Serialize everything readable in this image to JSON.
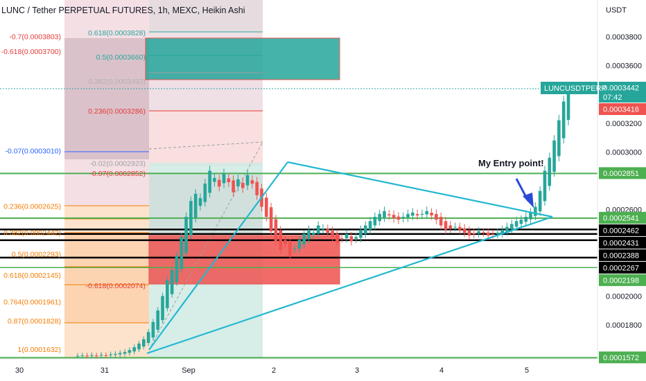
{
  "chart_data": {
    "type": "candlestick",
    "title": "LUNC / Tether PERPETUAL FUTURES, 1h, MEXC, Heikin Ashi",
    "symbol": "LUNCUSDTPERP",
    "currency": "USDT",
    "candle_style": "Heikin Ashi",
    "colors": {
      "up": "#26a69a",
      "down": "#ef5350",
      "trendline": "#22b8cf",
      "support": "#4caf50",
      "level": "#000000",
      "fib_blue": "#2962ff",
      "fib_red": "#e53935",
      "fib_orange": "#f57c00"
    },
    "y_axis": {
      "ticks": [
        "0.0003800",
        "0.0003600",
        "0.0003200",
        "0.0003000",
        "0.0002600",
        "0.0002000",
        "0.0001800"
      ],
      "ylim": [
        0.000153,
        0.0004
      ]
    },
    "x_axis": {
      "ticks": [
        "30",
        "31",
        "Sep",
        "2",
        "3",
        "4",
        "5"
      ]
    },
    "price_tags": [
      {
        "value": "0.0003442",
        "sub": "07:42",
        "color": "#26a69a"
      },
      {
        "value": "0.0003416",
        "color": "#ef5350"
      },
      {
        "value": "0.0002851",
        "color": "#4caf50"
      },
      {
        "value": "0.0002541",
        "color": "#4caf50"
      },
      {
        "value": "0.0002462",
        "color": "#000000"
      },
      {
        "value": "0.0002431",
        "color": "#000000"
      },
      {
        "value": "0.0002388",
        "color": "#000000"
      },
      {
        "value": "0.0002267",
        "color": "#000000"
      },
      {
        "value": "0.0002198",
        "color": "#4caf50"
      },
      {
        "value": "0.0001572",
        "color": "#4caf50"
      }
    ],
    "horizontal_levels": [
      {
        "price": 0.0002851,
        "color": "#4caf50",
        "width": 2
      },
      {
        "price": 0.0002541,
        "color": "#4caf50",
        "width": 2
      },
      {
        "price": 0.0002462,
        "color": "#000000",
        "width": 2.5
      },
      {
        "price": 0.0002431,
        "color": "#000000",
        "width": 2.5
      },
      {
        "price": 0.0002388,
        "color": "#000000",
        "width": 2.5
      },
      {
        "price": 0.0002267,
        "color": "#000000",
        "width": 2.5
      },
      {
        "price": 0.0002198,
        "color": "#4caf50",
        "width": 1.5
      },
      {
        "price": 0.0001572,
        "color": "#4caf50",
        "width": 2
      }
    ],
    "fib_labels": [
      {
        "text": "-0.7(0.0003803)",
        "price": 0.0003803,
        "color": "#e53935"
      },
      {
        "text": "-0.618(0.0003700)",
        "price": 0.00037,
        "color": "#e53935"
      },
      {
        "text": "0.618(0.0003828)",
        "price": 0.0003828,
        "color": "#26a69a"
      },
      {
        "text": "0.5(0.0003660)",
        "price": 0.000366,
        "color": "#26a69a"
      },
      {
        "text": "0.382(0.0003493)",
        "price": 0.0003493,
        "color": "#b0b0b0"
      },
      {
        "text": "0.236(0.0003286)",
        "price": 0.0003286,
        "color": "#e53935"
      },
      {
        "text": "-0.07(0.0003010)",
        "price": 0.000301,
        "color": "#2962ff"
      },
      {
        "text": "-0.02(0.0002923)",
        "price": 0.0002923,
        "color": "#9e9e9e"
      },
      {
        "text": "-0.07(0.0002852)",
        "price": 0.0002852,
        "color": "#e53935"
      },
      {
        "text": "0.236(0.0002625)",
        "price": 0.0002625,
        "color": "#f57c00"
      },
      {
        "text": "0.382(0.0002442)",
        "price": 0.0002442,
        "color": "#f57c00"
      },
      {
        "text": "0.5(0.0002293)",
        "price": 0.0002293,
        "color": "#f57c00"
      },
      {
        "text": "0.618(0.0002145)",
        "price": 0.0002145,
        "color": "#f57c00"
      },
      {
        "text": "-0.618(0.0002074)",
        "price": 0.0002074,
        "color": "#e53935"
      },
      {
        "text": "0.764(0.0001961)",
        "price": 0.0001961,
        "color": "#f57c00"
      },
      {
        "text": "0.87(0.0001828)",
        "price": 0.0001828,
        "color": "#f57c00"
      },
      {
        "text": "1(0.0001632)",
        "price": 0.0001632,
        "color": "#f57c00"
      }
    ],
    "annotation": "My Entry point!",
    "candles_close": [
      0.0001585,
      0.0001588,
      0.0001583,
      0.000159,
      0.0001586,
      0.0001592,
      0.0001589,
      0.0001595,
      0.0001598,
      0.0001605,
      0.0001612,
      0.0001625,
      0.0001645,
      0.000167,
      0.00017,
      0.000175,
      0.000182,
      0.00019,
      0.0002,
      0.000211,
      0.000218,
      0.000228,
      0.000241,
      0.000255,
      0.000266,
      0.000271,
      0.000268,
      0.000278,
      0.000287,
      0.000282,
      0.000276,
      0.000285,
      0.000279,
      0.000272,
      0.000281,
      0.000275,
      0.000284,
      0.000278,
      0.00027,
      0.000262,
      0.000255,
      0.000245,
      0.000238,
      0.000232,
      0.000236,
      0.000228,
      0.000233,
      0.000239,
      0.000243,
      0.000246,
      0.000244,
      0.000249,
      0.000247,
      0.000244,
      0.000241,
      0.000237,
      0.00024,
      0.000243,
      0.000238,
      0.000241,
      0.000246,
      0.000249,
      0.000252,
      0.000255,
      0.000257,
      0.000259,
      0.000256,
      0.000254,
      0.000253,
      0.000255,
      0.000257,
      0.000258,
      0.000256,
      0.000257,
      0.000259,
      0.000256,
      0.000253,
      0.000249,
      0.000246,
      0.000247,
      0.000248,
      0.000246,
      0.000244,
      0.000242,
      0.000243,
      0.000245,
      0.000244,
      0.000242,
      0.000243,
      0.000244,
      0.000246,
      0.000248,
      0.00025,
      0.000252,
      0.000253,
      0.000255,
      0.000258,
      0.000262,
      0.000273,
      0.000287,
      0.000296,
      0.000308,
      0.000322,
      0.000335,
      0.000344
    ]
  }
}
